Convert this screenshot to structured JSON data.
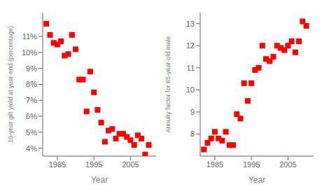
{
  "chart_data": [
    {
      "type": "scatter",
      "xlabel": "Year",
      "ylabel": "10-year gilt yield at year-end (percentage)",
      "x": [
        1982,
        1983,
        1984,
        1985,
        1986,
        1987,
        1988,
        1989,
        1990,
        1991,
        1992,
        1993,
        1994,
        1995,
        1996,
        1997,
        1998,
        1999,
        2000,
        2001,
        2002,
        2003,
        2004,
        2005,
        2006,
        2007,
        2008,
        2009,
        2010
      ],
      "values": [
        11.8,
        11.1,
        10.6,
        10.5,
        10.7,
        9.8,
        9.9,
        11.1,
        10.2,
        8.3,
        8.3,
        6.3,
        8.8,
        7.5,
        6.4,
        5.6,
        4.4,
        5.1,
        5.2,
        4.6,
        4.9,
        4.9,
        4.7,
        4.5,
        4.2,
        4.8,
        4.6,
        3.6,
        4.2
      ],
      "color": "#ff0000",
      "marker": "square",
      "xlim": [
        1981,
        2012
      ],
      "xticks": [
        1985,
        1995,
        2005
      ],
      "ylim": [
        3.5,
        12.5
      ],
      "yticks": [
        {
          "value": 4,
          "label": "4%"
        },
        {
          "value": 5,
          "label": "5%"
        },
        {
          "value": 6,
          "label": "6%"
        },
        {
          "value": 7,
          "label": "7%"
        },
        {
          "value": 8,
          "label": "8%"
        },
        {
          "value": 9,
          "label": "9%"
        },
        {
          "value": 10,
          "label": "10%"
        },
        {
          "value": 11,
          "label": "11%"
        }
      ],
      "grid": false
    },
    {
      "type": "scatter",
      "xlabel": "Year",
      "ylabel": "Annuity factor for 65-year-old male",
      "x": [
        1982,
        1983,
        1984,
        1985,
        1986,
        1987,
        1988,
        1989,
        1990,
        1991,
        1992,
        1993,
        1994,
        1995,
        1996,
        1997,
        1998,
        1999,
        2000,
        2001,
        2002,
        2003,
        2004,
        2005,
        2006,
        2007,
        2008,
        2009,
        2010
      ],
      "values": [
        7.3,
        7.6,
        7.8,
        8.1,
        7.8,
        7.7,
        8.1,
        7.5,
        7.5,
        8.9,
        8.7,
        10.3,
        9.5,
        10.3,
        10.9,
        11.0,
        12.0,
        11.4,
        11.3,
        11.5,
        12.0,
        11.9,
        11.8,
        12.0,
        12.2,
        11.7,
        12.2,
        13.1,
        12.9
      ],
      "color": "#ff0000",
      "marker": "square",
      "xlim": [
        1981,
        2012
      ],
      "xticks": [
        1985,
        1995,
        2005
      ],
      "ylim": [
        7.0,
        13.5
      ],
      "yticks": [
        8,
        9,
        10,
        11,
        12,
        13
      ],
      "grid": false
    }
  ]
}
